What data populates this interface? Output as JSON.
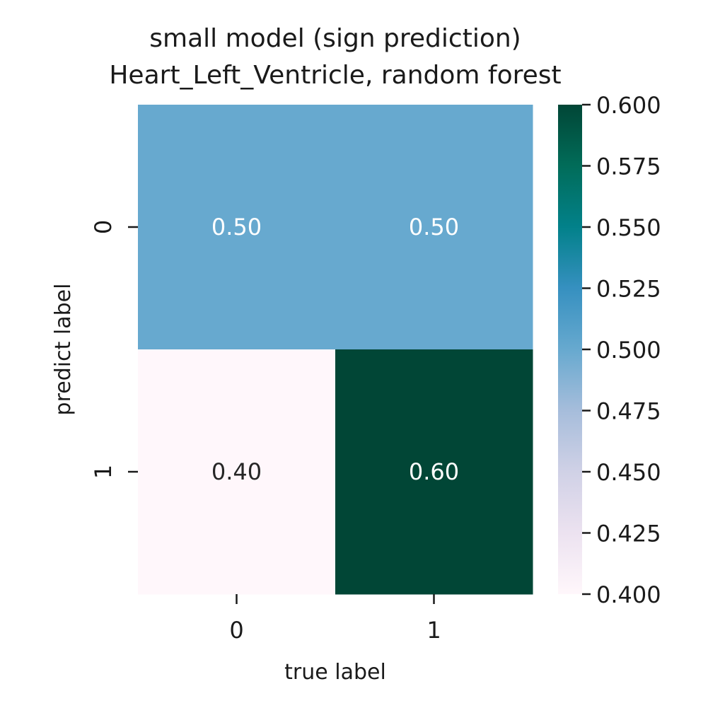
{
  "chart_data": {
    "type": "heatmap",
    "title": [
      "small model (sign prediction)",
      "Heart_Left_Ventricle, random forest"
    ],
    "xlabel": "true label",
    "ylabel": "predict label",
    "x_categories": [
      "0",
      "1"
    ],
    "y_categories": [
      "0",
      "1"
    ],
    "values": [
      [
        0.5,
        0.5
      ],
      [
        0.4,
        0.6
      ]
    ],
    "cell_labels": [
      [
        "0.50",
        "0.50"
      ],
      [
        "0.40",
        "0.60"
      ]
    ],
    "colormap": "PuBuGn",
    "vmin": 0.4,
    "vmax": 0.6,
    "colorbar": {
      "ticks": [
        0.4,
        0.425,
        0.45,
        0.475,
        0.5,
        0.525,
        0.55,
        0.575,
        0.6
      ],
      "tick_labels": [
        "0.400",
        "0.425",
        "0.450",
        "0.475",
        "0.500",
        "0.525",
        "0.550",
        "0.575",
        "0.600"
      ]
    },
    "colors": {
      "stops": [
        "#fff7fb",
        "#ece2f0",
        "#d0d1e6",
        "#a6bddb",
        "#67a9cf",
        "#3690c0",
        "#02818a",
        "#016c59",
        "#014636"
      ],
      "text_light": "#ffffff",
      "text_dark": "#262626"
    }
  }
}
